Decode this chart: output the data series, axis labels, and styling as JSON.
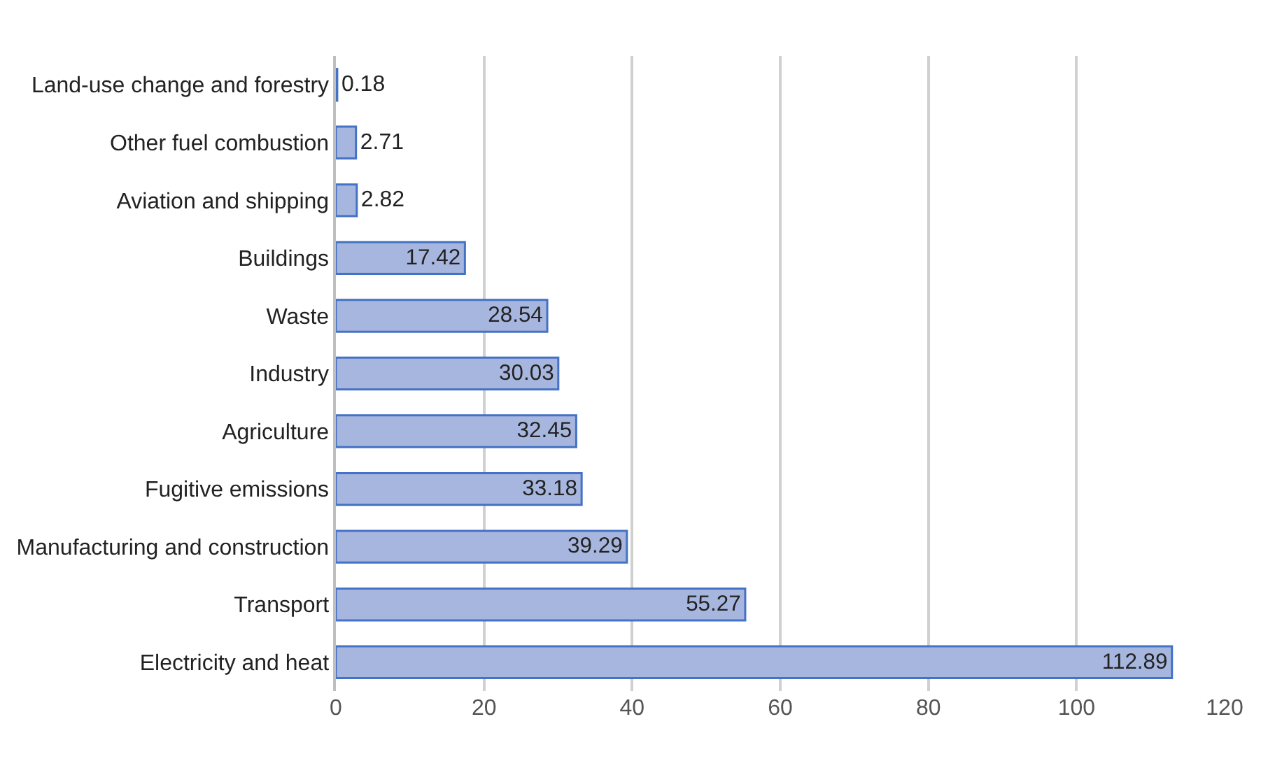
{
  "chart_data": {
    "type": "bar",
    "orientation": "horizontal",
    "categories": [
      "Land-use change and forestry",
      "Other fuel combustion",
      "Aviation and shipping",
      "Buildings",
      "Waste",
      "Industry",
      "Agriculture",
      "Fugitive emissions",
      "Manufacturing and construction",
      "Transport",
      "Electricity and heat"
    ],
    "values": [
      0.18,
      2.71,
      2.82,
      17.42,
      28.54,
      30.03,
      32.45,
      33.18,
      39.29,
      55.27,
      112.89
    ],
    "color": "#a7b6de",
    "xlim": [
      0,
      120
    ],
    "xticks": [
      0,
      20,
      40,
      60,
      80,
      100,
      120
    ],
    "grid": "x",
    "data_labels": true,
    "legend": false
  }
}
